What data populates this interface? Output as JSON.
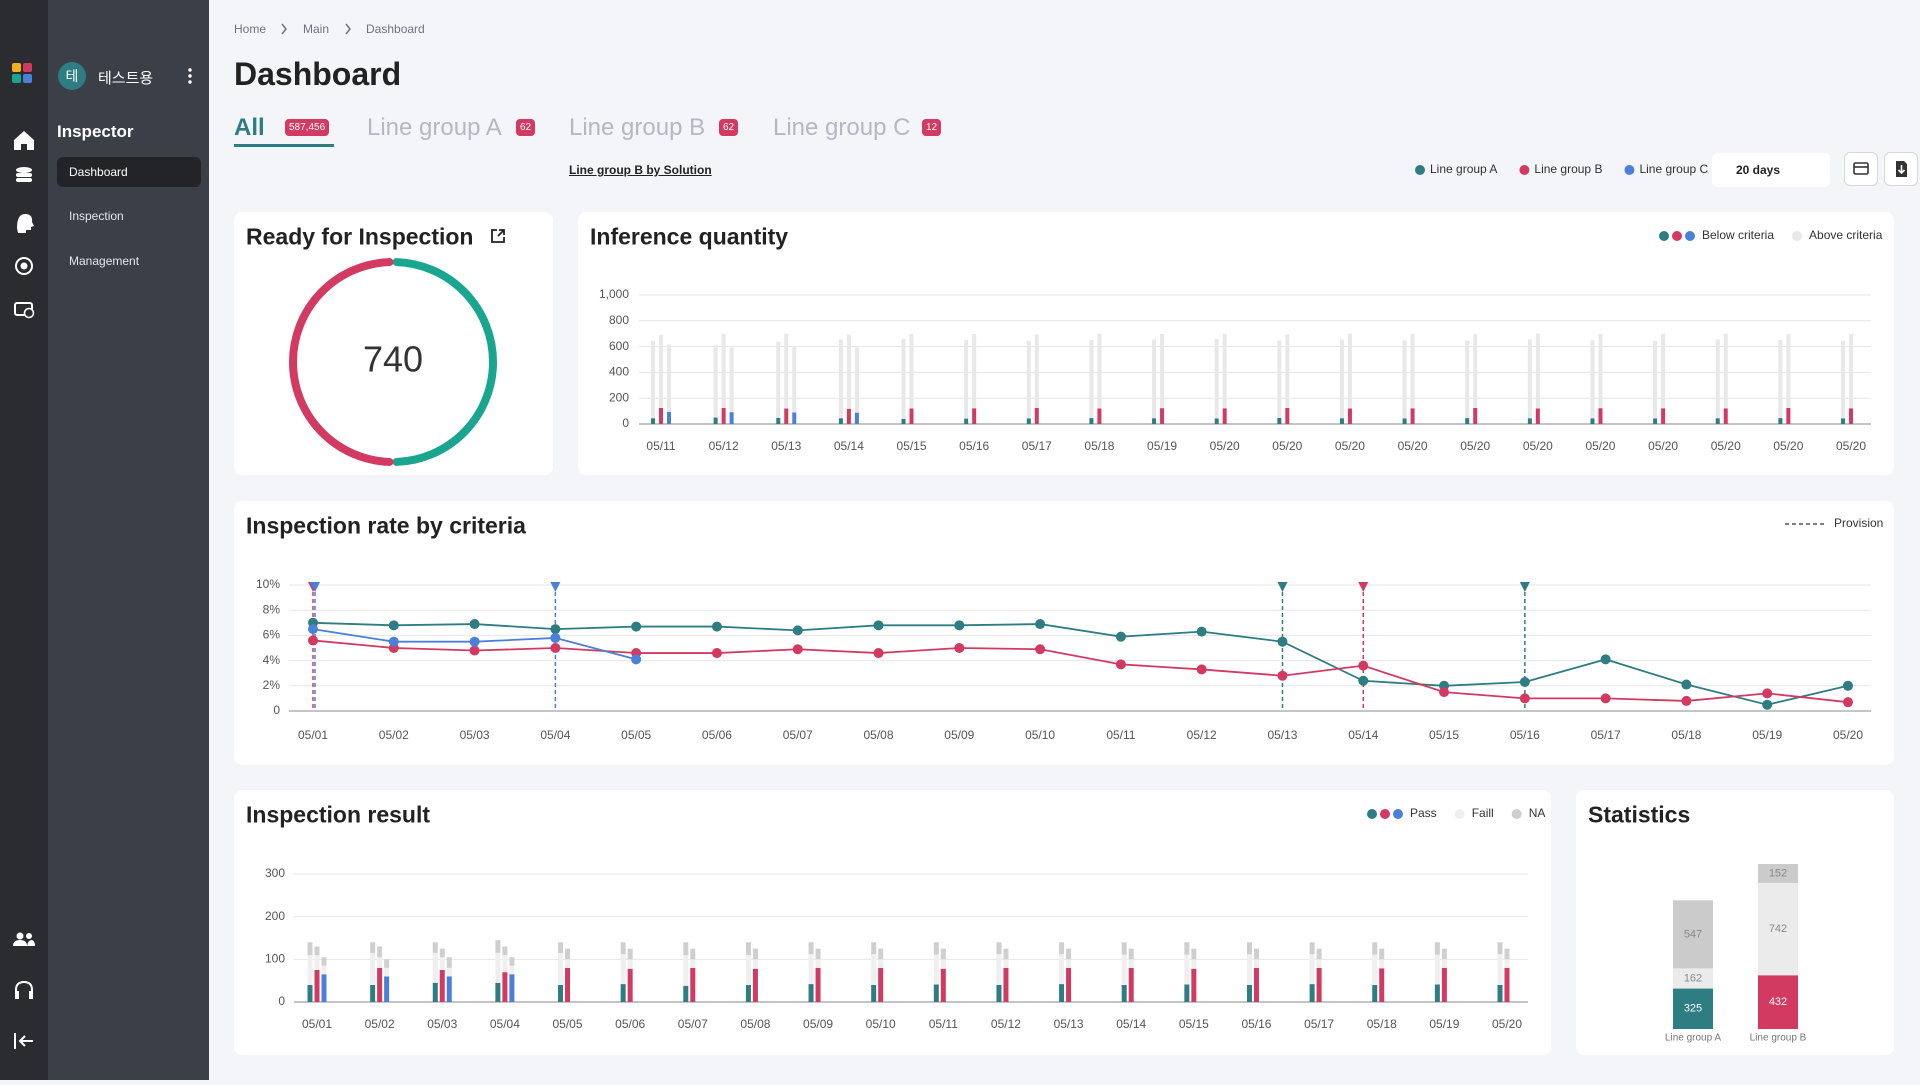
{
  "sidebar": {
    "avatar": "테",
    "user": "테스트용",
    "section": "Inspector",
    "menu": [
      "Dashboard",
      "Inspection",
      "Management"
    ]
  },
  "breadcrumb": [
    "Home",
    "Main",
    "Dashboard"
  ],
  "title": "Dashboard",
  "tabs": [
    {
      "label": "All",
      "badge": "587,456"
    },
    {
      "label": "Line group A",
      "badge": "62"
    },
    {
      "label": "Line group B",
      "badge": "62"
    },
    {
      "label": "Line group C",
      "badge": "12"
    }
  ],
  "solution_link": "Line group B by Solution",
  "filter_legend": [
    {
      "label": "Line group A",
      "color": "#2e7d82"
    },
    {
      "label": "Line group B",
      "color": "#d33a62"
    },
    {
      "label": "Line group C",
      "color": "#4a80d9"
    }
  ],
  "period": "20 days",
  "chart_data": [
    {
      "type": "donut",
      "title": "Ready for Inspection",
      "center_label": 740,
      "values": [
        50,
        50
      ],
      "colors": [
        "#1aa68e",
        "#d33a62"
      ]
    },
    {
      "type": "bar",
      "title": "Inference quantity",
      "categories": [
        "05/11",
        "05/12",
        "05/13",
        "05/14",
        "05/15",
        "05/16",
        "05/17",
        "05/18",
        "05/19",
        "05/20",
        "05/20",
        "05/20",
        "05/20",
        "05/20",
        "05/20",
        "05/20",
        "05/20",
        "05/20",
        "05/20",
        "05/20"
      ],
      "ylim": [
        0,
        1000
      ],
      "yticks": [
        0,
        200,
        400,
        600,
        800,
        {
          "value": 1000,
          "label": "1,000"
        }
      ],
      "grid": true,
      "legend": [
        {
          "label": "Below criteria",
          "colors": [
            "#2e7d82",
            "#d33a62",
            "#4a80d9"
          ]
        },
        {
          "label": "Above criteria",
          "colors": [
            "#e8e8e8"
          ]
        }
      ],
      "above_color": "#e8e8e8",
      "series": [
        {
          "color": "#2e7d82",
          "below": [
            45,
            50,
            48,
            45,
            40,
            42,
            44,
            46,
            45,
            43,
            47,
            45,
            44,
            46,
            45,
            44,
            43,
            45,
            46,
            44
          ],
          "above": [
            600,
            560,
            590,
            610,
            620,
            610,
            600,
            605,
            610,
            615,
            600,
            610,
            605,
            600,
            610,
            605,
            600,
            610,
            605,
            600
          ]
        },
        {
          "color": "#d33a62",
          "below": [
            125,
            125,
            120,
            118,
            120,
            122,
            125,
            120,
            123,
            122,
            125,
            120,
            122,
            124,
            120,
            123,
            122,
            121,
            124,
            122
          ],
          "above": [
            565,
            575,
            580,
            575,
            580,
            575,
            570,
            580,
            575,
            578,
            570,
            580,
            576,
            572,
            580,
            575,
            578,
            579,
            574,
            576
          ]
        },
        {
          "color": "#4a80d9",
          "below": [
            95,
            92,
            90,
            88,
            null,
            null,
            null,
            null,
            null,
            null,
            null,
            null,
            null,
            null,
            null,
            null,
            null,
            null,
            null,
            null
          ],
          "above": [
            520,
            500,
            515,
            505,
            null,
            null,
            null,
            null,
            null,
            null,
            null,
            null,
            null,
            null,
            null,
            null,
            null,
            null,
            null,
            null
          ]
        }
      ]
    },
    {
      "type": "line",
      "title": "Inspection rate by criteria",
      "categories": [
        "05/01",
        "05/02",
        "05/03",
        "05/04",
        "05/05",
        "05/06",
        "05/07",
        "05/08",
        "05/09",
        "05/10",
        "05/11",
        "05/12",
        "05/13",
        "05/14",
        "05/15",
        "05/16",
        "05/17",
        "05/18",
        "05/19",
        "05/20"
      ],
      "ylim": [
        0,
        10
      ],
      "yticks": [
        0,
        {
          "value": 2,
          "label": "2%"
        },
        {
          "value": 4,
          "label": "4%"
        },
        {
          "value": 6,
          "label": "6%"
        },
        {
          "value": 8,
          "label": "8%"
        },
        {
          "value": 10,
          "label": "10%"
        }
      ],
      "grid": true,
      "legend_label": "Provision",
      "series": [
        {
          "color": "#2e7d82",
          "values": [
            7.0,
            6.8,
            6.9,
            6.5,
            6.7,
            6.7,
            6.4,
            6.8,
            6.8,
            6.9,
            5.9,
            6.3,
            5.5,
            2.4,
            2.0,
            2.3,
            4.1,
            2.1,
            0.5,
            2.0
          ]
        },
        {
          "color": "#d33a62",
          "values": [
            5.6,
            5.0,
            4.8,
            5.0,
            4.6,
            4.6,
            4.9,
            4.6,
            5.0,
            4.9,
            3.7,
            3.3,
            2.8,
            3.6,
            1.5,
            1.0,
            1.0,
            0.8,
            1.4,
            0.7
          ]
        },
        {
          "color": "#4a80d9",
          "values": [
            6.5,
            5.5,
            5.5,
            5.8,
            4.1,
            null,
            null,
            null,
            null,
            null,
            null,
            null,
            null,
            null,
            null,
            null,
            null,
            null,
            null,
            null
          ]
        }
      ],
      "provisions": [
        {
          "x": "05/01",
          "color": "#d33a62"
        },
        {
          "x": "05/01",
          "color": "#4a80d9"
        },
        {
          "x": "05/04",
          "color": "#4a80d9"
        },
        {
          "x": "05/13",
          "color": "#2e7d82"
        },
        {
          "x": "05/14",
          "color": "#d33a62"
        },
        {
          "x": "05/16",
          "color": "#2e7d82"
        }
      ]
    },
    {
      "type": "bar",
      "title": "Inspection result",
      "categories": [
        "05/01",
        "05/02",
        "05/03",
        "05/04",
        "05/05",
        "05/06",
        "05/07",
        "05/08",
        "05/09",
        "05/10",
        "05/11",
        "05/12",
        "05/13",
        "05/14",
        "05/15",
        "05/16",
        "05/17",
        "05/18",
        "05/19",
        "05/20"
      ],
      "ylim": [
        0,
        300
      ],
      "yticks": [
        0,
        100,
        200,
        300
      ],
      "grid": true,
      "legend": [
        {
          "label": "Pass",
          "colors": [
            "#2e7d82",
            "#d33a62",
            "#4a80d9"
          ]
        },
        {
          "label": "Faill",
          "colors": [
            "#efefef"
          ]
        },
        {
          "label": "NA",
          "colors": [
            "#cfcfcf"
          ]
        }
      ],
      "fail_color": "#efefef",
      "na_color": "#cfcfcf",
      "series": [
        {
          "color": "#2e7d82",
          "pass": [
            40,
            40,
            45,
            45,
            40,
            42,
            38,
            40,
            42,
            40,
            41,
            40,
            42,
            40,
            41,
            40,
            42,
            40,
            41,
            40
          ],
          "fail": [
            70,
            75,
            70,
            70,
            75,
            70,
            72,
            70,
            70,
            72,
            70,
            72,
            70,
            71,
            70,
            72,
            70,
            71,
            70,
            72
          ],
          "na": [
            30,
            25,
            25,
            30,
            25,
            28,
            30,
            30,
            28,
            28,
            29,
            28,
            28,
            29,
            29,
            28,
            28,
            29,
            29,
            28
          ]
        },
        {
          "color": "#d33a62",
          "pass": [
            75,
            80,
            75,
            70,
            80,
            78,
            80,
            78,
            80,
            80,
            78,
            80,
            80,
            80,
            78,
            80,
            80,
            79,
            80,
            80
          ],
          "fail": [
            35,
            25,
            30,
            40,
            20,
            22,
            20,
            22,
            20,
            20,
            22,
            20,
            20,
            20,
            22,
            20,
            20,
            21,
            20,
            20
          ],
          "na": [
            20,
            25,
            20,
            20,
            25,
            25,
            25,
            25,
            25,
            25,
            25,
            25,
            25,
            25,
            25,
            25,
            25,
            25,
            25,
            25
          ]
        },
        {
          "color": "#4a80d9",
          "pass": [
            65,
            60,
            60,
            65,
            null,
            null,
            null,
            null,
            null,
            null,
            null,
            null,
            null,
            null,
            null,
            null,
            null,
            null,
            null,
            null
          ],
          "fail": [
            20,
            20,
            20,
            20,
            null,
            null,
            null,
            null,
            null,
            null,
            null,
            null,
            null,
            null,
            null,
            null,
            null,
            null,
            null,
            null
          ],
          "na": [
            20,
            20,
            25,
            20,
            null,
            null,
            null,
            null,
            null,
            null,
            null,
            null,
            null,
            null,
            null,
            null,
            null,
            null,
            null,
            null
          ]
        }
      ]
    },
    {
      "type": "stacked_bar",
      "title": "Statistics",
      "categories": [
        "Line group A",
        "Line group B"
      ],
      "series": [
        {
          "colors": [
            "#2e7d82",
            "#d33a62"
          ],
          "values": [
            325,
            432
          ]
        },
        {
          "color": "#ebebeb",
          "values": [
            162,
            742
          ]
        },
        {
          "color": "#cbcbcb",
          "values": [
            547,
            152
          ]
        }
      ]
    }
  ]
}
